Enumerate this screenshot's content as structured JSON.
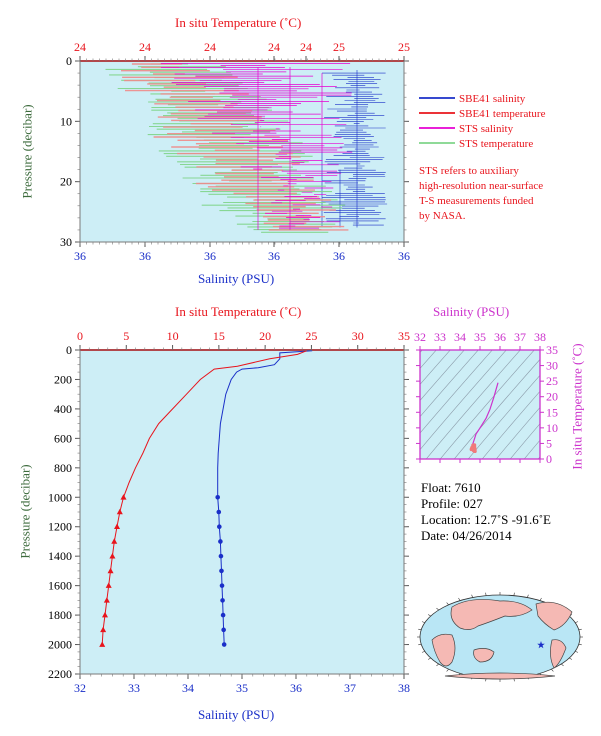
{
  "colors": {
    "panel_bg": "#cdeef6",
    "salinity": "#1a2fc8",
    "temperature": "#e8141c",
    "sts_salinity": "#e600d2",
    "sts_temperature": "#7fd48a",
    "ts_diagram": "#cc33cc",
    "pressure_axis": "#3d6b3d",
    "map_land": "#f5b9b4",
    "map_ocean": "#b9e6f5"
  },
  "chart_data": [
    {
      "type": "line",
      "name": "near-surface-profile",
      "x_top_label": "In situ Temperature (˚C)",
      "x_top_ticks": [
        "24",
        "24",
        "24",
        "24",
        "24",
        "25",
        "25"
      ],
      "x_bottom_label": "Salinity (PSU)",
      "x_bottom_ticks": [
        "36",
        "36",
        "36",
        "36",
        "36",
        "36"
      ],
      "ylabel": "Pressure (decibar)",
      "y_ticks": [
        0,
        10,
        20,
        30
      ],
      "ylim": [
        0,
        30
      ],
      "legend": [
        {
          "label": "SBE41 salinity",
          "color": "#1a2fc8"
        },
        {
          "label": "SBE41 temperature",
          "color": "#e8141c"
        },
        {
          "label": "STS salinity",
          "color": "#e600d2"
        },
        {
          "label": "STS temperature",
          "color": "#7fd48a"
        }
      ],
      "note": [
        "STS refers to auxiliary",
        "high-resolution near-surface",
        "T-S measurements funded",
        "by NASA."
      ]
    },
    {
      "type": "line",
      "name": "full-depth-profile",
      "x_top_label": "In situ Temperature (˚C)",
      "x_top_ticks": [
        0,
        5,
        10,
        15,
        20,
        25,
        30,
        35
      ],
      "xlim_temperature": [
        0,
        35
      ],
      "x_bottom_label": "Salinity (PSU)",
      "x_bottom_ticks": [
        32,
        33,
        34,
        35,
        36,
        37,
        38
      ],
      "xlim_salinity": [
        32,
        38
      ],
      "ylabel": "Pressure (decibar)",
      "y_ticks": [
        0,
        200,
        400,
        600,
        800,
        1000,
        1200,
        1400,
        1600,
        1800,
        2000,
        2200
      ],
      "ylim": [
        0,
        2200
      ],
      "series": [
        {
          "name": "salinity",
          "color": "#1a2fc8",
          "points": [
            [
              36.3,
              5
            ],
            [
              35.7,
              20
            ],
            [
              35.7,
              60
            ],
            [
              35.6,
              100
            ],
            [
              35.3,
              120
            ],
            [
              35.0,
              130
            ],
            [
              34.9,
              150
            ],
            [
              34.8,
              200
            ],
            [
              34.7,
              300
            ],
            [
              34.65,
              400
            ],
            [
              34.6,
              500
            ],
            [
              34.58,
              600
            ],
            [
              34.56,
              700
            ],
            [
              34.55,
              800
            ],
            [
              34.55,
              900
            ],
            [
              34.55,
              1000
            ],
            [
              34.57,
              1100
            ],
            [
              34.58,
              1200
            ],
            [
              34.6,
              1300
            ],
            [
              34.61,
              1400
            ],
            [
              34.62,
              1500
            ],
            [
              34.63,
              1600
            ],
            [
              34.64,
              1700
            ],
            [
              34.65,
              1800
            ],
            [
              34.66,
              1900
            ],
            [
              34.67,
              2000
            ]
          ],
          "markers_from_pressure": 1000,
          "marker": "circle"
        },
        {
          "name": "temperature",
          "color": "#e8141c",
          "points": [
            [
              24.5,
              5
            ],
            [
              23.5,
              30
            ],
            [
              20.5,
              60
            ],
            [
              17.0,
              110
            ],
            [
              14.5,
              130
            ],
            [
              13.0,
              200
            ],
            [
              11.5,
              300
            ],
            [
              10.0,
              400
            ],
            [
              8.5,
              500
            ],
            [
              7.5,
              600
            ],
            [
              6.8,
              700
            ],
            [
              6.0,
              800
            ],
            [
              5.3,
              900
            ],
            [
              4.7,
              1000
            ],
            [
              4.3,
              1100
            ],
            [
              4.0,
              1200
            ],
            [
              3.7,
              1300
            ],
            [
              3.5,
              1400
            ],
            [
              3.3,
              1500
            ],
            [
              3.1,
              1600
            ],
            [
              2.9,
              1700
            ],
            [
              2.7,
              1800
            ],
            [
              2.5,
              1900
            ],
            [
              2.4,
              2000
            ]
          ],
          "markers_from_pressure": 1000,
          "marker": "triangle"
        }
      ]
    },
    {
      "type": "line",
      "name": "ts-diagram",
      "xlabel": "Salinity (PSU)",
      "x_ticks": [
        32,
        33,
        34,
        35,
        36,
        37,
        38
      ],
      "xlim": [
        32,
        38
      ],
      "ylabel": "In situ Temperature (˚C)",
      "y_ticks": [
        0,
        5,
        10,
        15,
        20,
        25,
        30,
        35
      ],
      "ylim": [
        0,
        35
      ],
      "points": [
        [
          35.9,
          24.5
        ],
        [
          35.7,
          20
        ],
        [
          35.5,
          16
        ],
        [
          35.3,
          13
        ],
        [
          35.0,
          10
        ],
        [
          34.8,
          8
        ],
        [
          34.7,
          6
        ],
        [
          34.62,
          4.5
        ],
        [
          34.6,
          3.5
        ],
        [
          34.65,
          2.4
        ]
      ]
    }
  ],
  "float_info": {
    "float": "Float:  7610",
    "profile": "Profile:  027",
    "location": "Location:  12.7˚S  -91.6˚E",
    "date": "Date:  04/26/2014"
  }
}
